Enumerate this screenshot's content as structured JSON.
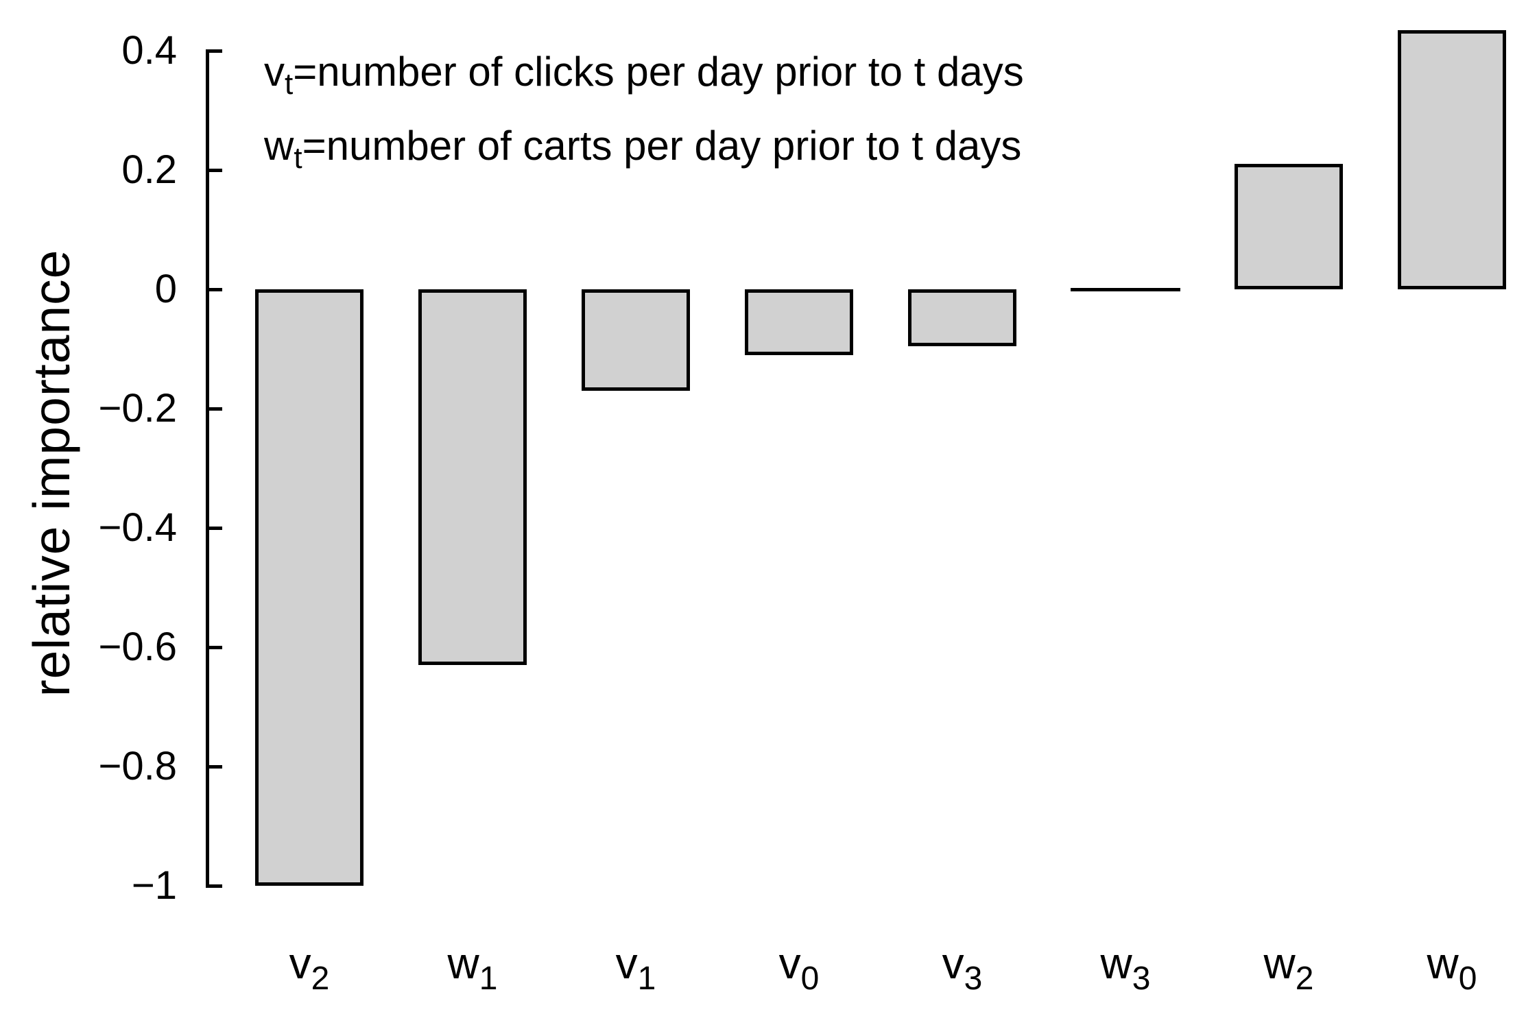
{
  "figure": {
    "background": "#ffffff",
    "text_color": "#000000"
  },
  "annotations": [
    {
      "base": "v",
      "sub": "t",
      "rest": "=number of clicks per day prior to t days"
    },
    {
      "base": "w",
      "sub": "t",
      "rest": "=number of carts per day prior to t days"
    }
  ],
  "chart_data": {
    "type": "bar",
    "title": "",
    "xlabel": "",
    "ylabel": "relative importance",
    "categories": [
      {
        "base": "v",
        "sub": "2"
      },
      {
        "base": "w",
        "sub": "1"
      },
      {
        "base": "v",
        "sub": "1"
      },
      {
        "base": "v",
        "sub": "0"
      },
      {
        "base": "v",
        "sub": "3"
      },
      {
        "base": "w",
        "sub": "3"
      },
      {
        "base": "w",
        "sub": "2"
      },
      {
        "base": "w",
        "sub": "0"
      }
    ],
    "values": [
      -1.0,
      -0.63,
      -0.17,
      -0.11,
      -0.095,
      0.0,
      0.21,
      0.435
    ],
    "ylim": [
      -1.05,
      0.45
    ],
    "yticks": [
      {
        "value": 0.4,
        "label": "0.4"
      },
      {
        "value": 0.2,
        "label": "0.2"
      },
      {
        "value": 0,
        "label": "0"
      },
      {
        "value": -0.2,
        "label": "−0.2"
      },
      {
        "value": -0.4,
        "label": "−0.4"
      },
      {
        "value": -0.6,
        "label": "−0.6"
      },
      {
        "value": -0.8,
        "label": "−0.8"
      },
      {
        "value": -1,
        "label": "−1"
      }
    ],
    "grid": false,
    "legend": "none",
    "bar_fill": "#d1d1d1",
    "bar_border": "#000000",
    "axis_color": "#000000"
  }
}
